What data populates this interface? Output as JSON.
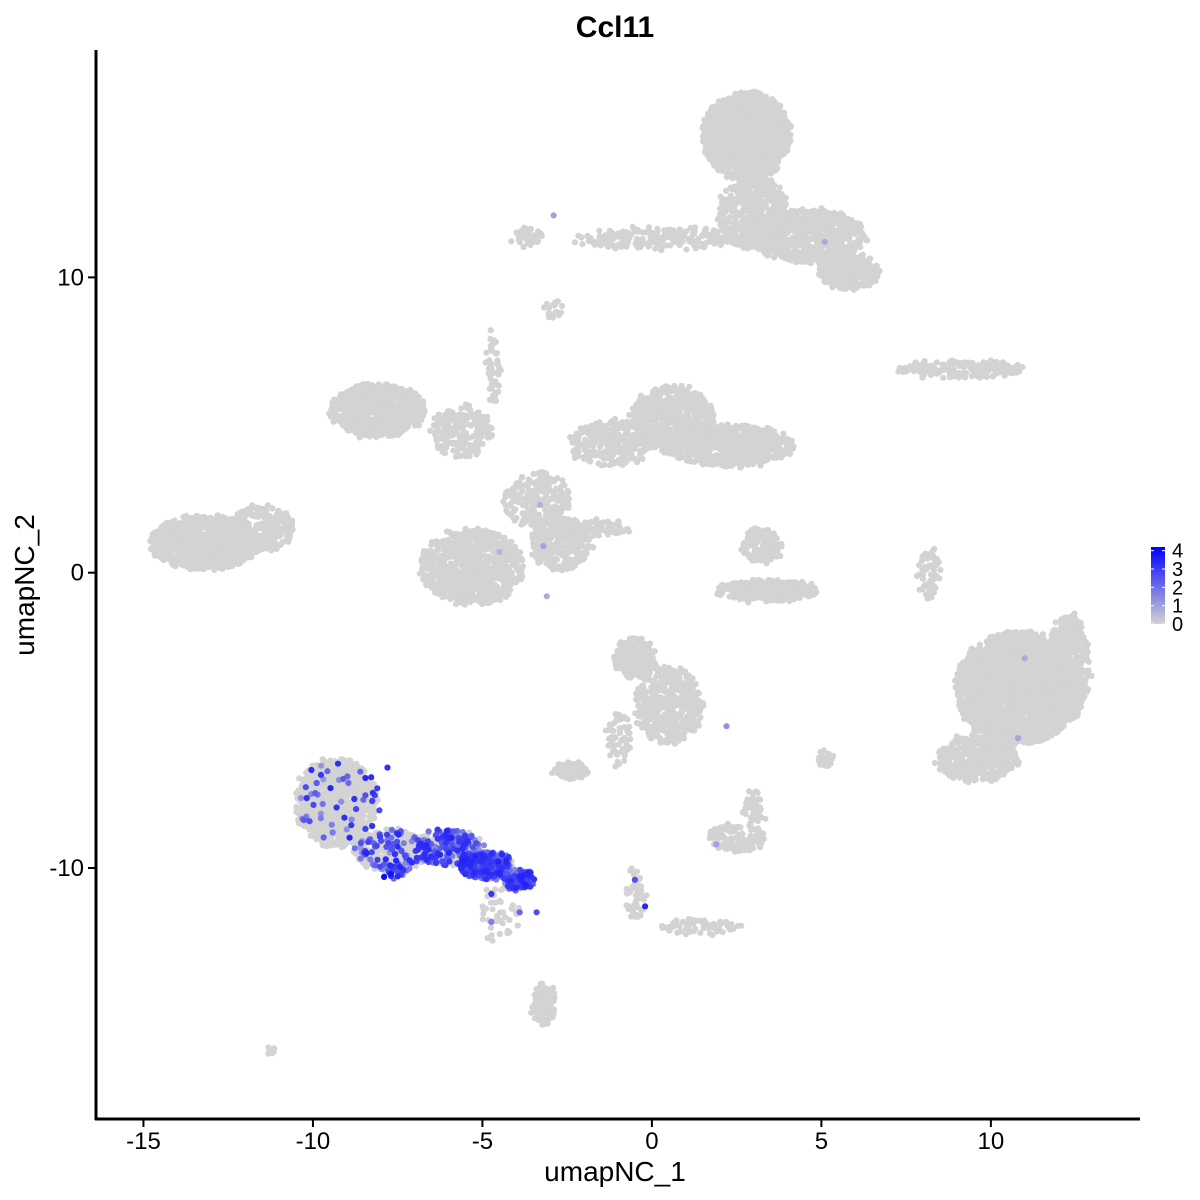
{
  "chart_data": {
    "type": "scatter",
    "title": "Ccl11",
    "xlabel": "umapNC_1",
    "ylabel": "umapNC_2",
    "xlim": [
      -16.4,
      14.4
    ],
    "ylim": [
      -18.5,
      17.7
    ],
    "x_ticks": [
      -15,
      -10,
      -5,
      0,
      5,
      10
    ],
    "x_tick_labels": [
      "-15",
      "-10",
      "-5",
      "0",
      "5",
      "10"
    ],
    "y_ticks": [
      -10,
      0,
      10
    ],
    "y_tick_labels": [
      "-10",
      "0",
      "10"
    ],
    "grid": false,
    "colors": {
      "low": "#d3d3d3",
      "high": "#0000ff",
      "axis": "#000000"
    },
    "legend": {
      "placement": "right",
      "title": "",
      "min": 0,
      "max": 4.2,
      "ticks": [
        0,
        1,
        2,
        3,
        4
      ],
      "tick_labels": [
        "0",
        "1",
        "2",
        "3",
        "4"
      ]
    },
    "clusters": [
      {
        "cx": 2.8,
        "cy": 14.8,
        "rx": 1.3,
        "ry": 1.5,
        "n": 1300,
        "expr": 0
      },
      {
        "cx": 3.0,
        "cy": 12.2,
        "rx": 1.0,
        "ry": 1.3,
        "n": 500,
        "expr": 0
      },
      {
        "cx": 4.6,
        "cy": 11.4,
        "rx": 1.7,
        "ry": 0.9,
        "n": 700,
        "expr": 0
      },
      {
        "cx": 5.8,
        "cy": 10.2,
        "rx": 0.9,
        "ry": 0.6,
        "n": 300,
        "expr": 0
      },
      {
        "cx": 0.3,
        "cy": 11.3,
        "rx": 2.6,
        "ry": 0.35,
        "n": 220,
        "expr": 0
      },
      {
        "cx": -3.7,
        "cy": 11.4,
        "rx": 0.5,
        "ry": 0.35,
        "n": 40,
        "expr": 0
      },
      {
        "cx": -2.9,
        "cy": 8.9,
        "rx": 0.3,
        "ry": 0.3,
        "n": 20,
        "expr": 0
      },
      {
        "cx": 9.1,
        "cy": 6.9,
        "rx": 1.9,
        "ry": 0.3,
        "n": 180,
        "expr": 0
      },
      {
        "cx": -8.1,
        "cy": 5.5,
        "rx": 1.4,
        "ry": 0.9,
        "n": 700,
        "expr": 0
      },
      {
        "cx": -5.6,
        "cy": 4.8,
        "rx": 0.9,
        "ry": 0.9,
        "n": 200,
        "expr": 0
      },
      {
        "cx": -4.7,
        "cy": 7.0,
        "rx": 0.2,
        "ry": 1.2,
        "n": 50,
        "expr": 0
      },
      {
        "cx": -1.2,
        "cy": 4.4,
        "rx": 1.2,
        "ry": 0.8,
        "n": 300,
        "expr": 0
      },
      {
        "cx": 0.6,
        "cy": 5.2,
        "rx": 1.2,
        "ry": 1.1,
        "n": 700,
        "expr": 0
      },
      {
        "cx": 2.3,
        "cy": 4.3,
        "rx": 1.9,
        "ry": 0.7,
        "n": 700,
        "expr": 0
      },
      {
        "cx": -3.4,
        "cy": 2.5,
        "rx": 1.0,
        "ry": 0.9,
        "n": 240,
        "expr": 0
      },
      {
        "cx": -5.3,
        "cy": 0.2,
        "rx": 1.5,
        "ry": 1.3,
        "n": 900,
        "expr": 0
      },
      {
        "cx": -2.7,
        "cy": 1.0,
        "rx": 0.9,
        "ry": 0.9,
        "n": 300,
        "expr": 0
      },
      {
        "cx": -1.6,
        "cy": 1.5,
        "rx": 1.0,
        "ry": 0.25,
        "n": 60,
        "expr": 0
      },
      {
        "cx": -13.2,
        "cy": 1.0,
        "rx": 1.6,
        "ry": 0.9,
        "n": 1000,
        "expr": 0
      },
      {
        "cx": -11.5,
        "cy": 1.5,
        "rx": 0.9,
        "ry": 0.8,
        "n": 250,
        "expr": 0
      },
      {
        "cx": 3.2,
        "cy": 0.9,
        "rx": 0.6,
        "ry": 0.6,
        "n": 150,
        "expr": 0
      },
      {
        "cx": 3.4,
        "cy": -0.6,
        "rx": 1.5,
        "ry": 0.35,
        "n": 350,
        "expr": 0
      },
      {
        "cx": 8.2,
        "cy": 0.0,
        "rx": 0.3,
        "ry": 0.9,
        "n": 60,
        "expr": 0
      },
      {
        "cx": 10.8,
        "cy": -3.9,
        "rx": 1.8,
        "ry": 1.9,
        "n": 2800,
        "expr": 0
      },
      {
        "cx": 9.6,
        "cy": -6.3,
        "rx": 1.2,
        "ry": 0.8,
        "n": 400,
        "expr": 0
      },
      {
        "cx": 12.3,
        "cy": -3.2,
        "rx": 0.6,
        "ry": 1.8,
        "n": 450,
        "expr": 0
      },
      {
        "cx": -0.5,
        "cy": -2.9,
        "rx": 0.6,
        "ry": 0.7,
        "n": 200,
        "expr": 0
      },
      {
        "cx": 0.5,
        "cy": -4.5,
        "rx": 1.0,
        "ry": 1.3,
        "n": 500,
        "expr": 0
      },
      {
        "cx": -1.0,
        "cy": -5.6,
        "rx": 0.35,
        "ry": 1.0,
        "n": 60,
        "expr": 0
      },
      {
        "cx": -2.4,
        "cy": -6.7,
        "rx": 0.5,
        "ry": 0.3,
        "n": 90,
        "expr": 0
      },
      {
        "cx": 5.1,
        "cy": -6.3,
        "rx": 0.2,
        "ry": 0.25,
        "n": 25,
        "expr": 0
      },
      {
        "cx": 2.5,
        "cy": -9.0,
        "rx": 0.8,
        "ry": 0.5,
        "n": 120,
        "expr": 0
      },
      {
        "cx": 3.0,
        "cy": -8.0,
        "rx": 0.3,
        "ry": 0.6,
        "n": 40,
        "expr": 0
      },
      {
        "cx": -0.5,
        "cy": -10.9,
        "rx": 0.3,
        "ry": 0.9,
        "n": 60,
        "expr": 0
      },
      {
        "cx": 1.4,
        "cy": -12.0,
        "rx": 1.3,
        "ry": 0.25,
        "n": 70,
        "expr": 0
      },
      {
        "cx": -3.2,
        "cy": -14.6,
        "rx": 0.35,
        "ry": 0.7,
        "n": 130,
        "expr": 0
      },
      {
        "cx": -9.3,
        "cy": -7.8,
        "rx": 1.2,
        "ry": 1.5,
        "n": 900,
        "expr": 0.06
      },
      {
        "cx": -7.7,
        "cy": -9.4,
        "rx": 1.1,
        "ry": 0.7,
        "n": 400,
        "expr": 0.18
      },
      {
        "cx": -6.0,
        "cy": -9.3,
        "rx": 1.0,
        "ry": 0.6,
        "n": 350,
        "expr": 0.45
      },
      {
        "cx": -4.9,
        "cy": -9.9,
        "rx": 0.8,
        "ry": 0.45,
        "n": 350,
        "expr": 0.8
      },
      {
        "cx": -3.9,
        "cy": -10.4,
        "rx": 0.45,
        "ry": 0.3,
        "n": 150,
        "expr": 0.75
      },
      {
        "cx": -4.5,
        "cy": -11.5,
        "rx": 0.6,
        "ry": 1.0,
        "n": 50,
        "expr": 0.05
      },
      {
        "cx": -7.5,
        "cy": -10.1,
        "rx": 0.3,
        "ry": 0.2,
        "n": 25,
        "expr": 0.85
      },
      {
        "cx": -11.2,
        "cy": -16.2,
        "rx": 0.15,
        "ry": 0.12,
        "n": 10,
        "expr": 0
      }
    ],
    "highlighted_points": [
      [
        -7.9,
        -10.3,
        4.0
      ],
      [
        -7.7,
        -10.2,
        3.8
      ],
      [
        -7.8,
        -6.6,
        3.3
      ],
      [
        -8.1,
        -7.3,
        3.0
      ],
      [
        -0.2,
        -11.3,
        3.4
      ],
      [
        -0.5,
        -10.4,
        2.6
      ],
      [
        -3.4,
        -11.5,
        2.6
      ],
      [
        -3.9,
        -11.5,
        2.2
      ],
      [
        -3.1,
        -0.8,
        0.8
      ],
      [
        -3.2,
        0.9,
        1.0
      ],
      [
        -3.3,
        2.3,
        0.7
      ],
      [
        -4.5,
        0.7,
        0.6
      ],
      [
        -2.9,
        12.1,
        1.0
      ],
      [
        5.1,
        11.2,
        0.8
      ],
      [
        11.0,
        -2.9,
        0.8
      ],
      [
        10.8,
        -5.6,
        0.9
      ],
      [
        2.2,
        -5.2,
        1.3
      ],
      [
        1.9,
        -9.2,
        1.0
      ]
    ]
  }
}
